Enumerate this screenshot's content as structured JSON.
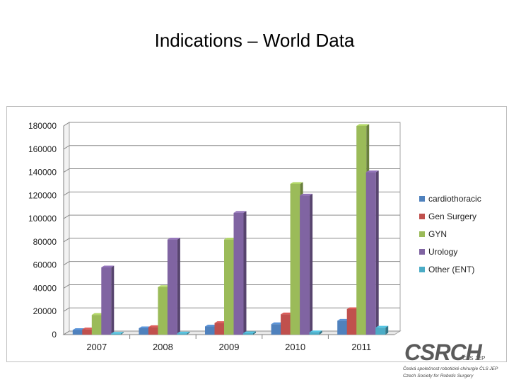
{
  "slide": {
    "title": "Indications – World Data"
  },
  "chart_data": {
    "type": "bar",
    "categories": [
      "2007",
      "2008",
      "2009",
      "2010",
      "2011"
    ],
    "series": [
      {
        "name": "cardiothoracic",
        "color": "#4f81bd",
        "values": [
          4000,
          5500,
          7000,
          9000,
          12000
        ]
      },
      {
        "name": "Gen Surgery",
        "color": "#c0504d",
        "values": [
          4500,
          6500,
          10000,
          17500,
          22000
        ]
      },
      {
        "name": "GYN",
        "color": "#9bbb59",
        "values": [
          17000,
          41000,
          82000,
          130000,
          180000
        ]
      },
      {
        "name": "Urology",
        "color": "#8064a2",
        "values": [
          58000,
          82000,
          105000,
          120000,
          140000
        ]
      },
      {
        "name": "Other (ENT)",
        "color": "#4bacc6",
        "values": [
          800,
          1000,
          1200,
          2000,
          6000
        ]
      }
    ],
    "ylim": [
      0,
      180000
    ],
    "yticks": [
      "0",
      "20000",
      "40000",
      "60000",
      "80000",
      "100000",
      "120000",
      "140000",
      "160000",
      "180000"
    ],
    "grid": true,
    "legend": "right",
    "three_d": true
  },
  "logo": {
    "name": "CSRCH",
    "subtext": "ČLS JEP",
    "line1": "Česká společnost robotické chirurgie ČLS JEP",
    "line2": "Czech Society for Robotic Surgery"
  }
}
